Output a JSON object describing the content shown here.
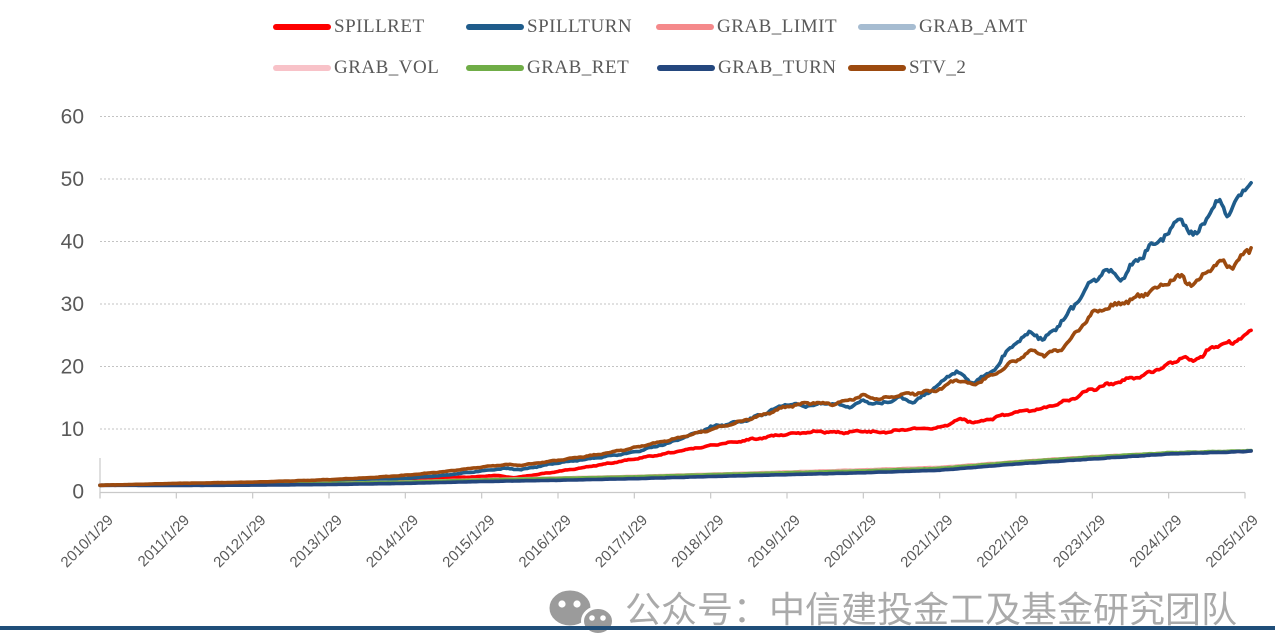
{
  "chart_data": {
    "type": "line",
    "title": "",
    "legend_position": "top",
    "grid": "horizontal-dotted",
    "y_axis": {
      "min": 0,
      "max": 60,
      "ticks": [
        0,
        10,
        20,
        30,
        40,
        50,
        60
      ]
    },
    "x_axis": {
      "rotation": -45,
      "labels": [
        "2010/1/29",
        "2011/1/29",
        "2012/1/29",
        "2013/1/29",
        "2014/1/29",
        "2015/1/29",
        "2016/1/29",
        "2017/1/29",
        "2018/1/29",
        "2019/1/29",
        "2020/1/29",
        "2021/1/29",
        "2022/1/29",
        "2023/1/29",
        "2024/1/29",
        "2025/1/29"
      ]
    },
    "series": [
      {
        "name": "SPILLRET",
        "color": "#FE0000",
        "jag": 1,
        "points": [
          [
            2010.08,
            1.0
          ],
          [
            2010.6,
            1.03
          ],
          [
            2011.08,
            1.1
          ],
          [
            2011.6,
            1.16
          ],
          [
            2012.08,
            1.25
          ],
          [
            2012.6,
            1.35
          ],
          [
            2013.08,
            1.5
          ],
          [
            2013.6,
            1.7
          ],
          [
            2014.08,
            1.9
          ],
          [
            2014.6,
            2.15
          ],
          [
            2015.08,
            2.4
          ],
          [
            2015.25,
            2.6
          ],
          [
            2015.5,
            2.2
          ],
          [
            2015.8,
            2.7
          ],
          [
            2016.08,
            3.2
          ],
          [
            2016.6,
            4.2
          ],
          [
            2017.08,
            5.2
          ],
          [
            2017.6,
            6.3
          ],
          [
            2018.08,
            7.4
          ],
          [
            2018.6,
            8.3
          ],
          [
            2019.08,
            9.2
          ],
          [
            2019.5,
            9.6
          ],
          [
            2019.8,
            9.4
          ],
          [
            2020.08,
            9.7
          ],
          [
            2020.3,
            9.4
          ],
          [
            2020.7,
            10.0
          ],
          [
            2021.08,
            10.2
          ],
          [
            2021.35,
            11.6
          ],
          [
            2021.55,
            11.0
          ],
          [
            2021.8,
            11.8
          ],
          [
            2022.08,
            12.7
          ],
          [
            2022.4,
            13.2
          ],
          [
            2022.75,
            14.5
          ],
          [
            2023.08,
            16.4
          ],
          [
            2023.4,
            17.5
          ],
          [
            2023.7,
            18.4
          ],
          [
            2024.08,
            20.3
          ],
          [
            2024.25,
            21.5
          ],
          [
            2024.4,
            20.8
          ],
          [
            2024.6,
            22.5
          ],
          [
            2024.8,
            24.0
          ],
          [
            2024.92,
            23.4
          ],
          [
            2025.0,
            24.8
          ],
          [
            2025.08,
            25.0
          ],
          [
            2025.16,
            25.8
          ]
        ]
      },
      {
        "name": "SPILLTURN",
        "color": "#1F5C8B",
        "jag": 1,
        "points": [
          [
            2010.08,
            1.0
          ],
          [
            2010.6,
            1.05
          ],
          [
            2011.08,
            1.15
          ],
          [
            2011.6,
            1.2
          ],
          [
            2012.08,
            1.3
          ],
          [
            2012.6,
            1.42
          ],
          [
            2013.08,
            1.55
          ],
          [
            2013.6,
            1.8
          ],
          [
            2014.08,
            2.1
          ],
          [
            2014.6,
            2.6
          ],
          [
            2015.08,
            3.3
          ],
          [
            2015.4,
            3.7
          ],
          [
            2015.6,
            3.5
          ],
          [
            2016.08,
            4.6
          ],
          [
            2016.6,
            5.4
          ],
          [
            2017.08,
            6.3
          ],
          [
            2017.6,
            8.0
          ],
          [
            2018.08,
            10.3
          ],
          [
            2018.5,
            11.2
          ],
          [
            2018.75,
            12.3
          ],
          [
            2019.08,
            14.0
          ],
          [
            2019.3,
            13.6
          ],
          [
            2019.6,
            14.2
          ],
          [
            2019.9,
            13.6
          ],
          [
            2020.08,
            14.5
          ],
          [
            2020.3,
            13.9
          ],
          [
            2020.55,
            15.0
          ],
          [
            2020.75,
            14.3
          ],
          [
            2021.08,
            17.2
          ],
          [
            2021.3,
            19.3
          ],
          [
            2021.5,
            17.4
          ],
          [
            2021.75,
            19.0
          ],
          [
            2022.08,
            24.0
          ],
          [
            2022.3,
            25.5
          ],
          [
            2022.45,
            24.2
          ],
          [
            2022.7,
            27.5
          ],
          [
            2023.08,
            33.5
          ],
          [
            2023.25,
            35.5
          ],
          [
            2023.45,
            33.8
          ],
          [
            2023.7,
            37.5
          ],
          [
            2024.08,
            41.5
          ],
          [
            2024.25,
            43.8
          ],
          [
            2024.4,
            40.3
          ],
          [
            2024.6,
            44.5
          ],
          [
            2024.75,
            46.5
          ],
          [
            2024.87,
            44.0
          ],
          [
            2025.0,
            47.5
          ],
          [
            2025.08,
            48.5
          ],
          [
            2025.16,
            49.4
          ]
        ]
      },
      {
        "name": "GRAB_LIMIT",
        "color": "#F5898B",
        "jag": 0.35,
        "points": [
          [
            2010.08,
            1.0
          ],
          [
            2011.08,
            1.05
          ],
          [
            2012.08,
            1.12
          ],
          [
            2013.08,
            1.28
          ],
          [
            2014.08,
            1.52
          ],
          [
            2015.08,
            1.9
          ],
          [
            2016.08,
            2.15
          ],
          [
            2017.08,
            2.4
          ],
          [
            2018.08,
            2.75
          ],
          [
            2019.08,
            3.1
          ],
          [
            2020.08,
            3.45
          ],
          [
            2021.08,
            3.85
          ],
          [
            2022.08,
            4.75
          ],
          [
            2023.08,
            5.55
          ],
          [
            2024.08,
            6.15
          ],
          [
            2025.08,
            6.45
          ],
          [
            2025.16,
            6.5
          ]
        ]
      },
      {
        "name": "GRAB_AMT",
        "color": "#A6BCD1",
        "jag": 0.35,
        "points": [
          [
            2010.08,
            1.0
          ],
          [
            2011.08,
            1.02
          ],
          [
            2012.08,
            1.1
          ],
          [
            2013.08,
            1.25
          ],
          [
            2014.08,
            1.48
          ],
          [
            2015.08,
            1.8
          ],
          [
            2016.08,
            2.05
          ],
          [
            2017.08,
            2.3
          ],
          [
            2018.08,
            2.65
          ],
          [
            2019.08,
            2.95
          ],
          [
            2020.08,
            3.25
          ],
          [
            2021.08,
            3.65
          ],
          [
            2022.08,
            4.6
          ],
          [
            2023.08,
            5.4
          ],
          [
            2024.08,
            6.05
          ],
          [
            2025.08,
            6.4
          ],
          [
            2025.16,
            6.45
          ]
        ]
      },
      {
        "name": "GRAB_VOL",
        "color": "#F8C2C8",
        "jag": 0.35,
        "points": [
          [
            2010.08,
            1.0
          ],
          [
            2011.08,
            1.04
          ],
          [
            2012.08,
            1.13
          ],
          [
            2013.08,
            1.27
          ],
          [
            2014.08,
            1.5
          ],
          [
            2015.08,
            1.87
          ],
          [
            2016.08,
            2.12
          ],
          [
            2017.08,
            2.37
          ],
          [
            2018.08,
            2.72
          ],
          [
            2019.08,
            3.05
          ],
          [
            2020.08,
            3.35
          ],
          [
            2021.08,
            3.75
          ],
          [
            2022.08,
            4.68
          ],
          [
            2023.08,
            5.48
          ],
          [
            2024.08,
            6.1
          ],
          [
            2025.08,
            6.42
          ],
          [
            2025.16,
            6.48
          ]
        ]
      },
      {
        "name": "GRAB_RET",
        "color": "#70AD47",
        "jag": 0.35,
        "points": [
          [
            2010.08,
            1.0
          ],
          [
            2011.08,
            1.05
          ],
          [
            2012.08,
            1.15
          ],
          [
            2013.08,
            1.3
          ],
          [
            2014.08,
            1.5
          ],
          [
            2015.08,
            1.85
          ],
          [
            2016.08,
            2.1
          ],
          [
            2017.08,
            2.35
          ],
          [
            2018.08,
            2.7
          ],
          [
            2019.08,
            3.0
          ],
          [
            2020.08,
            3.3
          ],
          [
            2021.08,
            3.7
          ],
          [
            2022.08,
            4.7
          ],
          [
            2023.08,
            5.5
          ],
          [
            2024.08,
            6.2
          ],
          [
            2025.08,
            6.5
          ],
          [
            2025.16,
            6.55
          ]
        ]
      },
      {
        "name": "GRAB_TURN",
        "color": "#24477E",
        "jag": 0.35,
        "points": [
          [
            2010.08,
            1.0
          ],
          [
            2011.08,
            0.97
          ],
          [
            2012.08,
            1.02
          ],
          [
            2013.08,
            1.12
          ],
          [
            2014.08,
            1.3
          ],
          [
            2015.08,
            1.6
          ],
          [
            2016.08,
            1.8
          ],
          [
            2017.08,
            2.05
          ],
          [
            2018.08,
            2.4
          ],
          [
            2019.08,
            2.7
          ],
          [
            2020.08,
            3.0
          ],
          [
            2021.08,
            3.4
          ],
          [
            2022.08,
            4.4
          ],
          [
            2023.08,
            5.2
          ],
          [
            2024.08,
            6.0
          ],
          [
            2025.08,
            6.4
          ],
          [
            2025.16,
            6.5
          ]
        ]
      },
      {
        "name": "STV_2",
        "color": "#9C4A0F",
        "jag": 0.8,
        "points": [
          [
            2010.08,
            1.0
          ],
          [
            2010.6,
            1.15
          ],
          [
            2011.08,
            1.3
          ],
          [
            2011.6,
            1.4
          ],
          [
            2012.08,
            1.5
          ],
          [
            2012.6,
            1.68
          ],
          [
            2013.08,
            1.9
          ],
          [
            2013.6,
            2.2
          ],
          [
            2014.08,
            2.6
          ],
          [
            2014.6,
            3.2
          ],
          [
            2015.08,
            3.9
          ],
          [
            2015.4,
            4.3
          ],
          [
            2015.6,
            4.2
          ],
          [
            2016.08,
            5.0
          ],
          [
            2016.6,
            5.9
          ],
          [
            2017.08,
            7.0
          ],
          [
            2017.6,
            8.4
          ],
          [
            2018.08,
            9.9
          ],
          [
            2018.5,
            11.3
          ],
          [
            2018.75,
            12.2
          ],
          [
            2019.08,
            13.6
          ],
          [
            2019.4,
            14.2
          ],
          [
            2019.7,
            14.0
          ],
          [
            2020.08,
            15.3
          ],
          [
            2020.3,
            14.8
          ],
          [
            2020.6,
            15.5
          ],
          [
            2020.9,
            15.9
          ],
          [
            2021.08,
            16.4
          ],
          [
            2021.3,
            18.0
          ],
          [
            2021.5,
            17.0
          ],
          [
            2021.75,
            18.5
          ],
          [
            2022.08,
            21.0
          ],
          [
            2022.3,
            22.5
          ],
          [
            2022.45,
            21.8
          ],
          [
            2022.7,
            23.0
          ],
          [
            2023.08,
            28.5
          ],
          [
            2023.3,
            29.5
          ],
          [
            2023.55,
            30.5
          ],
          [
            2023.75,
            31.5
          ],
          [
            2024.08,
            33.5
          ],
          [
            2024.25,
            34.5
          ],
          [
            2024.4,
            32.8
          ],
          [
            2024.6,
            35.5
          ],
          [
            2024.8,
            36.8
          ],
          [
            2024.92,
            36.0
          ],
          [
            2025.0,
            37.0
          ],
          [
            2025.08,
            38.3
          ],
          [
            2025.16,
            39.0
          ]
        ]
      }
    ]
  },
  "watermark": {
    "text": "公众号：中信建投金工及基金研究团队",
    "icon": "wechat-icon",
    "color": "#aaaaaa"
  },
  "footer": {
    "rule_color": "#1F4E79"
  }
}
